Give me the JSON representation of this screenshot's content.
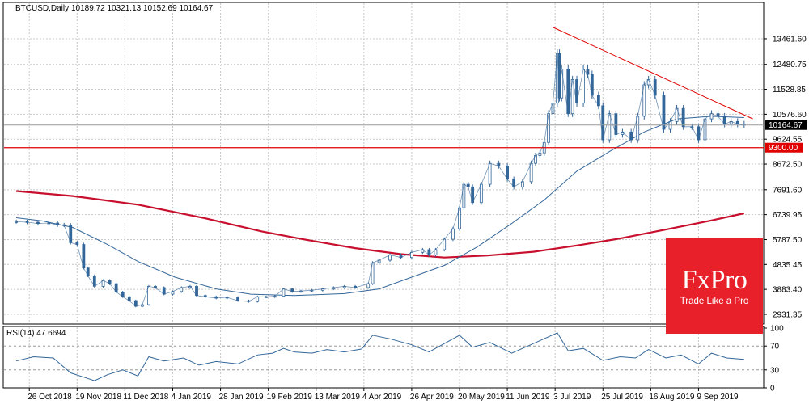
{
  "header": {
    "symbol": "BTCUSD,Daily",
    "ohlc": "10189.72 10321.13 10152.69 10164.67"
  },
  "indicator": {
    "label": "RSI(14) 47.6694"
  },
  "brand": {
    "logo": "FxPro",
    "tagline": "Trade Like a Pro"
  },
  "colors": {
    "price": "#336699",
    "ma_long": "#c8102e",
    "trendline": "#e00000",
    "support": "#e00000",
    "current": "#999999",
    "brand": "#e8202a"
  },
  "chart_data": [
    {
      "type": "candlestick",
      "x_tick_labels": [
        "26 Oct 2018",
        "19 Nov 2018",
        "11 Dec 2018",
        "4 Jan 2019",
        "28 Jan 2019",
        "19 Feb 2019",
        "13 Mar 2019",
        "4 Apr 2019",
        "26 Apr 2019",
        "20 May 2019",
        "11 Jun 2019",
        "3 Jul 2019",
        "25 Jul 2019",
        "16 Aug 2019",
        "9 Sep 2019"
      ],
      "y_tick_labels": [
        "13461.60",
        "12480.75",
        "11528.85",
        "10576.60",
        "9624.55",
        "8672.50",
        "7691.60",
        "6739.95",
        "5787.50",
        "4835.45",
        "3883.40",
        "2931.35"
      ],
      "ylim": [
        2560,
        14850
      ],
      "current_price": {
        "label": "10164.67",
        "value": 10164.67
      },
      "support": {
        "label": "9300.00",
        "value": 9300
      },
      "trendline": {
        "from": {
          "date": "2019-06-24",
          "value": 13900
        },
        "to": {
          "date": "2019-09-24",
          "value": 10400
        }
      },
      "series": [
        {
          "key": "close",
          "points": [
            [
              "2018-10-20",
              6470
            ],
            [
              "2018-10-25",
              6450
            ],
            [
              "2018-10-30",
              6400
            ],
            [
              "2018-11-04",
              6420
            ],
            [
              "2018-11-08",
              6350
            ],
            [
              "2018-11-11",
              6340
            ],
            [
              "2018-11-14",
              5670
            ],
            [
              "2018-11-17",
              5600
            ],
            [
              "2018-11-20",
              4700
            ],
            [
              "2018-11-22",
              4400
            ],
            [
              "2018-11-25",
              4000
            ],
            [
              "2018-11-29",
              4220
            ],
            [
              "2018-12-02",
              4100
            ],
            [
              "2018-12-05",
              3780
            ],
            [
              "2018-12-08",
              3600
            ],
            [
              "2018-12-11",
              3450
            ],
            [
              "2018-12-14",
              3240
            ],
            [
              "2018-12-17",
              3300
            ],
            [
              "2018-12-20",
              4000
            ],
            [
              "2018-12-23",
              3950
            ],
            [
              "2018-12-27",
              3700
            ],
            [
              "2018-12-31",
              3800
            ],
            [
              "2019-01-04",
              3950
            ],
            [
              "2019-01-08",
              4000
            ],
            [
              "2019-01-11",
              3650
            ],
            [
              "2019-01-15",
              3600
            ],
            [
              "2019-01-20",
              3550
            ],
            [
              "2019-01-25",
              3580
            ],
            [
              "2019-01-30",
              3450
            ],
            [
              "2019-02-04",
              3420
            ],
            [
              "2019-02-08",
              3600
            ],
            [
              "2019-02-12",
              3600
            ],
            [
              "2019-02-16",
              3620
            ],
            [
              "2019-02-20",
              3900
            ],
            [
              "2019-02-24",
              3800
            ],
            [
              "2019-02-28",
              3820
            ],
            [
              "2019-03-05",
              3850
            ],
            [
              "2019-03-10",
              3900
            ],
            [
              "2019-03-15",
              3950
            ],
            [
              "2019-03-20",
              4000
            ],
            [
              "2019-03-25",
              3950
            ],
            [
              "2019-03-31",
              4100
            ],
            [
              "2019-04-02",
              4900
            ],
            [
              "2019-04-05",
              5000
            ],
            [
              "2019-04-10",
              5200
            ],
            [
              "2019-04-15",
              5100
            ],
            [
              "2019-04-20",
              5300
            ],
            [
              "2019-04-25",
              5400
            ],
            [
              "2019-04-28",
              5200
            ],
            [
              "2019-05-01",
              5400
            ],
            [
              "2019-05-05",
              5800
            ],
            [
              "2019-05-09",
              6200
            ],
            [
              "2019-05-12",
              7000
            ],
            [
              "2019-05-14",
              7900
            ],
            [
              "2019-05-16",
              7800
            ],
            [
              "2019-05-18",
              7200
            ],
            [
              "2019-05-22",
              7900
            ],
            [
              "2019-05-26",
              8700
            ],
            [
              "2019-05-30",
              8600
            ],
            [
              "2019-06-03",
              8100
            ],
            [
              "2019-06-06",
              7800
            ],
            [
              "2019-06-10",
              8000
            ],
            [
              "2019-06-14",
              8700
            ],
            [
              "2019-06-16",
              9000
            ],
            [
              "2019-06-18",
              9100
            ],
            [
              "2019-06-20",
              9500
            ],
            [
              "2019-06-22",
              10600
            ],
            [
              "2019-06-24",
              11000
            ],
            [
              "2019-06-26",
              12900
            ],
            [
              "2019-06-27",
              11200
            ],
            [
              "2019-06-28",
              12300
            ],
            [
              "2019-07-01",
              10600
            ],
            [
              "2019-07-03",
              11900
            ],
            [
              "2019-07-05",
              11000
            ],
            [
              "2019-07-08",
              12300
            ],
            [
              "2019-07-10",
              12100
            ],
            [
              "2019-07-12",
              11300
            ],
            [
              "2019-07-15",
              10900
            ],
            [
              "2019-07-17",
              9600
            ],
            [
              "2019-07-20",
              10600
            ],
            [
              "2019-07-23",
              9800
            ],
            [
              "2019-07-26",
              9900
            ],
            [
              "2019-07-30",
              9600
            ],
            [
              "2019-08-02",
              10500
            ],
            [
              "2019-08-05",
              11700
            ],
            [
              "2019-08-07",
              11900
            ],
            [
              "2019-08-10",
              11300
            ],
            [
              "2019-08-14",
              10000
            ],
            [
              "2019-08-17",
              10300
            ],
            [
              "2019-08-20",
              10800
            ],
            [
              "2019-08-23",
              10100
            ],
            [
              "2019-08-27",
              10100
            ],
            [
              "2019-08-30",
              9600
            ],
            [
              "2019-09-02",
              10400
            ],
            [
              "2019-09-05",
              10600
            ],
            [
              "2019-09-08",
              10500
            ],
            [
              "2019-09-11",
              10200
            ],
            [
              "2019-09-14",
              10300
            ],
            [
              "2019-09-17",
              10200
            ],
            [
              "2019-09-20",
              10164.67
            ]
          ]
        },
        {
          "key": "ma_short",
          "points": [
            [
              "2018-10-20",
              6620
            ],
            [
              "2018-11-01",
              6500
            ],
            [
              "2018-11-15",
              6250
            ],
            [
              "2018-12-01",
              5600
            ],
            [
              "2018-12-15",
              4950
            ],
            [
              "2019-01-01",
              4350
            ],
            [
              "2019-01-20",
              3900
            ],
            [
              "2019-02-05",
              3700
            ],
            [
              "2019-02-25",
              3650
            ],
            [
              "2019-03-20",
              3720
            ],
            [
              "2019-04-05",
              3900
            ],
            [
              "2019-04-20",
              4350
            ],
            [
              "2019-05-05",
              4800
            ],
            [
              "2019-05-20",
              5500
            ],
            [
              "2019-06-05",
              6400
            ],
            [
              "2019-06-20",
              7300
            ],
            [
              "2019-07-05",
              8400
            ],
            [
              "2019-07-20",
              9150
            ],
            [
              "2019-08-05",
              9900
            ],
            [
              "2019-08-20",
              10400
            ],
            [
              "2019-09-05",
              10500
            ],
            [
              "2019-09-20",
              10450
            ]
          ]
        },
        {
          "key": "ma_long",
          "points": [
            [
              "2018-10-20",
              7640
            ],
            [
              "2018-11-15",
              7450
            ],
            [
              "2018-12-15",
              7120
            ],
            [
              "2019-01-15",
              6600
            ],
            [
              "2019-02-10",
              6100
            ],
            [
              "2019-03-01",
              5800
            ],
            [
              "2019-03-25",
              5460
            ],
            [
              "2019-04-15",
              5230
            ],
            [
              "2019-05-05",
              5100
            ],
            [
              "2019-05-25",
              5180
            ],
            [
              "2019-06-15",
              5320
            ],
            [
              "2019-07-05",
              5560
            ],
            [
              "2019-07-25",
              5830
            ],
            [
              "2019-08-15",
              6170
            ],
            [
              "2019-09-05",
              6520
            ],
            [
              "2019-09-20",
              6790
            ]
          ]
        }
      ]
    },
    {
      "type": "line",
      "y_tick_labels": [
        "100",
        "70",
        "30",
        "0"
      ],
      "ylim": [
        0,
        100
      ],
      "levels": [
        70,
        30
      ],
      "series": [
        {
          "key": "rsi",
          "points": [
            [
              "2018-10-20",
              45
            ],
            [
              "2018-10-28",
              52
            ],
            [
              "2018-11-06",
              50
            ],
            [
              "2018-11-14",
              25
            ],
            [
              "2018-11-20",
              18
            ],
            [
              "2018-11-25",
              12
            ],
            [
              "2018-12-01",
              22
            ],
            [
              "2018-12-08",
              30
            ],
            [
              "2018-12-15",
              20
            ],
            [
              "2018-12-20",
              52
            ],
            [
              "2018-12-27",
              45
            ],
            [
              "2019-01-05",
              50
            ],
            [
              "2019-01-12",
              38
            ],
            [
              "2019-01-20",
              44
            ],
            [
              "2019-01-30",
              40
            ],
            [
              "2019-02-08",
              55
            ],
            [
              "2019-02-15",
              58
            ],
            [
              "2019-02-20",
              66
            ],
            [
              "2019-02-25",
              60
            ],
            [
              "2019-03-05",
              58
            ],
            [
              "2019-03-12",
              64
            ],
            [
              "2019-03-20",
              60
            ],
            [
              "2019-03-28",
              65
            ],
            [
              "2019-04-02",
              88
            ],
            [
              "2019-04-10",
              82
            ],
            [
              "2019-04-20",
              72
            ],
            [
              "2019-04-28",
              60
            ],
            [
              "2019-05-05",
              74
            ],
            [
              "2019-05-12",
              88
            ],
            [
              "2019-05-18",
              68
            ],
            [
              "2019-05-26",
              76
            ],
            [
              "2019-06-05",
              58
            ],
            [
              "2019-06-15",
              74
            ],
            [
              "2019-06-26",
              92
            ],
            [
              "2019-07-01",
              62
            ],
            [
              "2019-07-08",
              66
            ],
            [
              "2019-07-17",
              46
            ],
            [
              "2019-07-25",
              52
            ],
            [
              "2019-08-01",
              50
            ],
            [
              "2019-08-07",
              64
            ],
            [
              "2019-08-15",
              50
            ],
            [
              "2019-08-22",
              55
            ],
            [
              "2019-08-30",
              40
            ],
            [
              "2019-09-05",
              58
            ],
            [
              "2019-09-12",
              50
            ],
            [
              "2019-09-20",
              47.67
            ]
          ]
        }
      ]
    }
  ]
}
